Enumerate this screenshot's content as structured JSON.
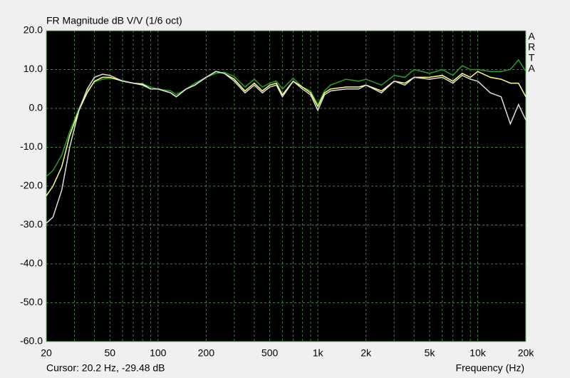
{
  "chart_data": {
    "type": "line",
    "title": "FR Magnitude dB V/V (1/6 oct)",
    "logo": [
      "A",
      "R",
      "T",
      "A"
    ],
    "cursor": "Cursor: 20.2 Hz, -29.48 dB",
    "xlabel": "Frequency (Hz)",
    "xscale": "log",
    "grid": true,
    "xlim": [
      20,
      20000
    ],
    "ylim": [
      -60,
      20
    ],
    "xticks": [
      20,
      50,
      100,
      200,
      500,
      {
        "value": 1000,
        "label": "1k"
      },
      {
        "value": 2000,
        "label": "2k"
      },
      {
        "value": 5000,
        "label": "5k"
      },
      {
        "value": 10000,
        "label": "10k"
      },
      {
        "value": 20000,
        "label": "20k"
      }
    ],
    "xgrid": [
      30,
      40,
      50,
      60,
      70,
      80,
      90,
      100,
      200,
      300,
      400,
      500,
      600,
      700,
      800,
      900,
      1000,
      2000,
      3000,
      4000,
      5000,
      6000,
      7000,
      8000,
      9000,
      10000
    ],
    "yticks": [
      {
        "value": 20,
        "label": "20.0"
      },
      {
        "value": 10,
        "label": "10.0"
      },
      {
        "value": 0,
        "label": "0.0"
      },
      {
        "value": -10,
        "label": "-10.0"
      },
      {
        "value": -20,
        "label": "-20.0"
      },
      {
        "value": -30,
        "label": "-30.0"
      },
      {
        "value": -40,
        "label": "-40.0"
      },
      {
        "value": -50,
        "label": "-50.0"
      },
      {
        "value": -60,
        "label": "-60.0"
      }
    ],
    "x": [
      20,
      22,
      25,
      28,
      32,
      36,
      40,
      45,
      50,
      60,
      70,
      80,
      90,
      100,
      120,
      130,
      150,
      170,
      200,
      230,
      260,
      300,
      350,
      400,
      450,
      500,
      550,
      600,
      700,
      800,
      900,
      1000,
      1100,
      1200,
      1500,
      1800,
      2000,
      2500,
      3000,
      3500,
      4000,
      5000,
      6000,
      7000,
      8000,
      9000,
      10000,
      12000,
      14000,
      16000,
      18000,
      20000
    ],
    "series": [
      {
        "color": "#22a022",
        "values": [
          -17.5,
          -16,
          -12,
          -6,
          0,
          4.5,
          6.8,
          7.5,
          7.8,
          7.2,
          6.5,
          6.3,
          5.5,
          5.0,
          4.5,
          3.5,
          5.0,
          6.5,
          8.0,
          9.0,
          9.3,
          8.2,
          5.5,
          7.5,
          5.5,
          6.5,
          7.0,
          5.0,
          7.8,
          5.5,
          4.5,
          1.0,
          4.5,
          6.0,
          7.5,
          7.0,
          7.5,
          6.0,
          8.5,
          8.0,
          10.0,
          9.0,
          10.0,
          8.5,
          11.0,
          10.0,
          10.0,
          9.5,
          9.5,
          10.0,
          12.5,
          9.5
        ]
      },
      {
        "color": "#ffff80",
        "values": [
          -22.5,
          -20,
          -15,
          -7,
          -0.5,
          4,
          7,
          8,
          8,
          7,
          6.5,
          6.3,
          5.0,
          5.0,
          4.0,
          3.0,
          5.0,
          6.0,
          8.0,
          9.5,
          9.0,
          7.5,
          4.5,
          6.5,
          4.5,
          6.0,
          6.5,
          3.5,
          7.0,
          5.5,
          4.0,
          0.5,
          4.0,
          5.0,
          5.5,
          5.5,
          6.0,
          4.5,
          7.0,
          6.5,
          8.0,
          8.0,
          8.5,
          7.0,
          9.0,
          8.0,
          9.5,
          8.0,
          7.5,
          6.5,
          6.5,
          3.0
        ]
      },
      {
        "color": "#dcdcdc",
        "values": [
          -29.5,
          -28,
          -21,
          -10,
          -0.5,
          5,
          8,
          8.8,
          8.5,
          7.0,
          6.5,
          6.0,
          5.0,
          5.0,
          4.0,
          3.0,
          5.0,
          6.0,
          8.0,
          9.5,
          9.0,
          7.0,
          4.0,
          6.0,
          4.0,
          5.5,
          6.0,
          3.0,
          7.0,
          5.0,
          3.5,
          -0.5,
          3.5,
          4.5,
          5.0,
          5.0,
          6.0,
          4.0,
          7.0,
          6.0,
          8.0,
          7.5,
          8.0,
          6.5,
          8.5,
          7.5,
          7.0,
          4.0,
          3.0,
          -4.0,
          1.0,
          -3.0
        ]
      }
    ]
  }
}
